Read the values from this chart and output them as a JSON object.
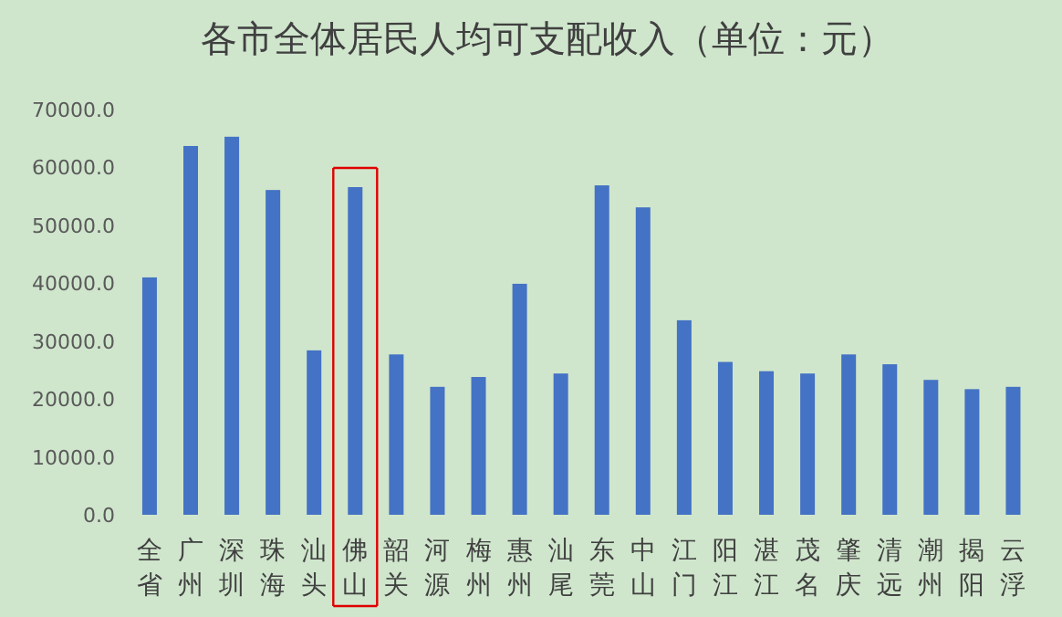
{
  "chart_data": {
    "type": "bar",
    "title": "各市全体居民人均可支配收入（单位：元）",
    "categories": [
      "全省",
      "广州",
      "深圳",
      "珠海",
      "汕头",
      "佛山",
      "韶关",
      "河源",
      "梅州",
      "惠州",
      "汕尾",
      "东莞",
      "中山",
      "江门",
      "阳江",
      "湛江",
      "茂名",
      "肇庆",
      "清远",
      "潮州",
      "揭阳",
      "云浮"
    ],
    "values": [
      41000,
      63700,
      65300,
      56100,
      28400,
      56600,
      27700,
      22100,
      23800,
      39900,
      24400,
      56900,
      53100,
      33600,
      26400,
      24800,
      24400,
      27700,
      26000,
      23300,
      21700,
      22100
    ],
    "color": "#4472c4",
    "ylim": [
      0,
      70000
    ],
    "yticks": [
      {
        "value": 0,
        "label": "0.0"
      },
      {
        "value": 10000,
        "label": "10000.0"
      },
      {
        "value": 20000,
        "label": "20000.0"
      },
      {
        "value": 30000,
        "label": "30000.0"
      },
      {
        "value": 40000,
        "label": "40000.0"
      },
      {
        "value": 50000,
        "label": "50000.0"
      },
      {
        "value": 60000,
        "label": "60000.0"
      },
      {
        "value": 70000,
        "label": "70000.0"
      }
    ],
    "grid": false
  }
}
